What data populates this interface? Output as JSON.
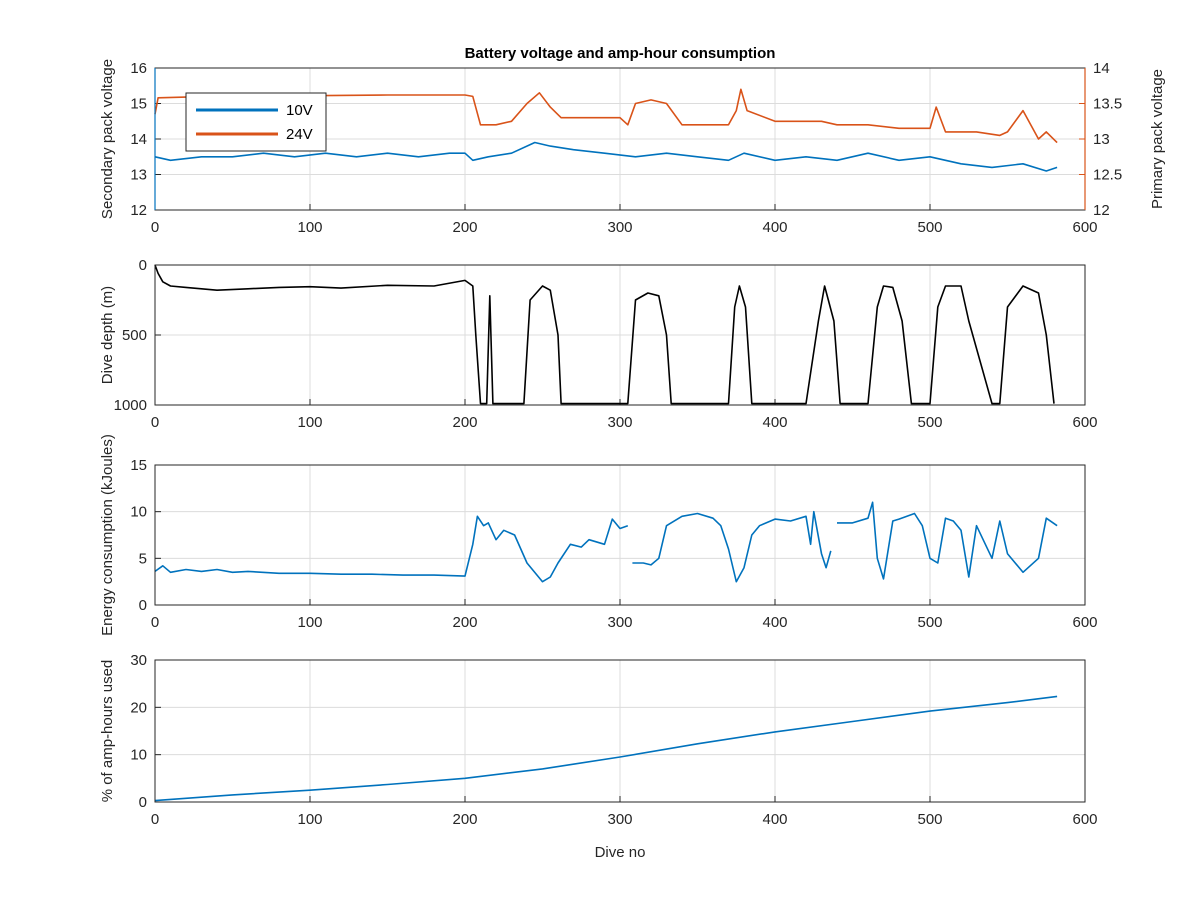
{
  "colors": {
    "blue": "#0072BD",
    "orange": "#D95319",
    "black": "#000000",
    "grid": "#dcdcdc",
    "axis": "#262626"
  },
  "figure_title": "Battery voltage and amp-hour consumption",
  "chart_data": [
    {
      "type": "line",
      "title": "Battery voltage and amp-hour consumption",
      "xlabel": "",
      "ylabel": "Secondary pack voltage",
      "ylabel_right": "Primary pack voltage",
      "xlim": [
        0,
        600
      ],
      "ylim": [
        12,
        16
      ],
      "ylim_right": [
        12,
        14
      ],
      "xticks": [
        "0",
        "100",
        "200",
        "300",
        "400",
        "500",
        "600"
      ],
      "yticks": [
        "12",
        "13",
        "14",
        "15",
        "16"
      ],
      "yticks_right": [
        "12",
        "12.5",
        "13",
        "13.5",
        "14"
      ],
      "grid": true,
      "legend": {
        "position": "top-left",
        "entries": [
          "10V",
          "24V"
        ]
      },
      "series": [
        {
          "name": "10V",
          "axis": "left",
          "color": "blue",
          "x": [
            0,
            10,
            30,
            50,
            70,
            90,
            110,
            130,
            150,
            170,
            190,
            200,
            205,
            215,
            230,
            245,
            255,
            270,
            290,
            310,
            330,
            350,
            370,
            380,
            400,
            420,
            440,
            460,
            480,
            500,
            520,
            540,
            560,
            575,
            582
          ],
          "y": [
            13.5,
            13.4,
            13.5,
            13.5,
            13.6,
            13.5,
            13.6,
            13.5,
            13.6,
            13.5,
            13.6,
            13.6,
            13.4,
            13.5,
            13.6,
            13.9,
            13.8,
            13.7,
            13.6,
            13.5,
            13.6,
            13.5,
            13.4,
            13.6,
            13.4,
            13.5,
            13.4,
            13.6,
            13.4,
            13.5,
            13.3,
            13.2,
            13.3,
            13.1,
            13.2
          ]
        },
        {
          "name": "24V",
          "axis": "right",
          "color": "orange",
          "x": [
            0,
            2,
            20,
            50,
            100,
            150,
            200,
            205,
            210,
            220,
            230,
            240,
            248,
            255,
            262,
            280,
            300,
            305,
            310,
            320,
            330,
            340,
            370,
            375,
            378,
            382,
            400,
            430,
            440,
            460,
            480,
            500,
            504,
            510,
            530,
            545,
            550,
            560,
            570,
            575,
            582
          ],
          "y": [
            13.35,
            13.58,
            13.59,
            13.6,
            13.61,
            13.62,
            13.62,
            13.6,
            13.2,
            13.2,
            13.25,
            13.5,
            13.65,
            13.45,
            13.3,
            13.3,
            13.3,
            13.2,
            13.5,
            13.55,
            13.5,
            13.2,
            13.2,
            13.4,
            13.7,
            13.4,
            13.25,
            13.25,
            13.2,
            13.2,
            13.15,
            13.15,
            13.45,
            13.1,
            13.1,
            13.05,
            13.1,
            13.4,
            13.0,
            13.1,
            12.95
          ]
        }
      ]
    },
    {
      "type": "line",
      "xlabel": "",
      "ylabel": "Dive depth (m)",
      "xlim": [
        0,
        600
      ],
      "ylim": [
        1000,
        0
      ],
      "reversed_y": true,
      "xticks": [
        "0",
        "100",
        "200",
        "300",
        "400",
        "500",
        "600"
      ],
      "yticks": [
        "0",
        "500",
        "1000"
      ],
      "grid": true,
      "series": [
        {
          "color": "black",
          "x": [
            0,
            2,
            5,
            10,
            20,
            40,
            60,
            80,
            100,
            120,
            150,
            180,
            200,
            205,
            207,
            210,
            212,
            214,
            216,
            218,
            220,
            230,
            238,
            242,
            250,
            255,
            260,
            262,
            300,
            305,
            310,
            318,
            325,
            330,
            333,
            360,
            370,
            374,
            377,
            381,
            385,
            390,
            420,
            428,
            432,
            438,
            442,
            450,
            460,
            466,
            470,
            476,
            482,
            488,
            490,
            500,
            505,
            510,
            520,
            525,
            540,
            545,
            550,
            560,
            570,
            575,
            580
          ],
          "y": [
            0,
            60,
            120,
            150,
            160,
            180,
            170,
            160,
            155,
            165,
            145,
            150,
            110,
            150,
            500,
            990,
            990,
            990,
            220,
            990,
            990,
            990,
            990,
            250,
            150,
            180,
            500,
            990,
            990,
            990,
            250,
            200,
            220,
            500,
            990,
            990,
            990,
            300,
            150,
            300,
            990,
            990,
            990,
            400,
            150,
            400,
            990,
            990,
            990,
            300,
            150,
            160,
            400,
            990,
            990,
            990,
            300,
            150,
            150,
            400,
            990,
            990,
            300,
            150,
            200,
            500,
            990
          ]
        }
      ]
    },
    {
      "type": "line",
      "xlabel": "",
      "ylabel": "Energy consumption (kJoules)",
      "xlim": [
        0,
        600
      ],
      "ylim": [
        0,
        15
      ],
      "xticks": [
        "0",
        "100",
        "200",
        "300",
        "400",
        "500",
        "600"
      ],
      "yticks": [
        "0",
        "5",
        "10",
        "15"
      ],
      "grid": true,
      "series": [
        {
          "color": "blue",
          "segments": [
            {
              "x": [
                0,
                5,
                10,
                20,
                30,
                40,
                50,
                60,
                80,
                100,
                120,
                140,
                160,
                180,
                200,
                205,
                208,
                212,
                215,
                220,
                225,
                232,
                240,
                250,
                255,
                260,
                268,
                275,
                280,
                290,
                295,
                300,
                305
              ],
              "y": [
                3.6,
                4.2,
                3.5,
                3.8,
                3.6,
                3.8,
                3.5,
                3.6,
                3.4,
                3.4,
                3.3,
                3.3,
                3.2,
                3.2,
                3.1,
                6.5,
                9.5,
                8.5,
                8.8,
                7.0,
                8.0,
                7.5,
                4.5,
                2.5,
                3.0,
                4.5,
                6.5,
                6.2,
                7.0,
                6.5,
                9.2,
                8.2,
                8.5
              ]
            },
            {
              "x": [
                308,
                315,
                320,
                325,
                330,
                340,
                350,
                360,
                365,
                370,
                375,
                380,
                385,
                390,
                400,
                410,
                420,
                423,
                425,
                430,
                433,
                436
              ],
              "y": [
                4.5,
                4.5,
                4.3,
                5.0,
                8.5,
                9.5,
                9.8,
                9.3,
                8.5,
                6.0,
                2.5,
                4.0,
                7.5,
                8.5,
                9.2,
                9.0,
                9.5,
                6.5,
                10.0,
                5.5,
                4.0,
                5.8
              ]
            },
            {
              "x": [
                440,
                450,
                460,
                463,
                466,
                470,
                476,
                480,
                490,
                495,
                500,
                505,
                510,
                515,
                520,
                525,
                530,
                540,
                545,
                550,
                560,
                570,
                575,
                582
              ],
              "y": [
                8.8,
                8.8,
                9.3,
                11.0,
                5.0,
                2.8,
                9.0,
                9.2,
                9.8,
                8.5,
                5.0,
                4.5,
                9.3,
                9.0,
                8.0,
                3.0,
                8.5,
                5.0,
                9.0,
                5.5,
                3.5,
                5.0,
                9.3,
                8.5
              ]
            }
          ]
        }
      ]
    },
    {
      "type": "line",
      "xlabel": "Dive no",
      "ylabel": "% of amp-hours used",
      "xlim": [
        0,
        600
      ],
      "ylim": [
        0,
        30
      ],
      "xticks": [
        "0",
        "100",
        "200",
        "300",
        "400",
        "500",
        "600"
      ],
      "yticks": [
        "0",
        "10",
        "20",
        "30"
      ],
      "grid": true,
      "series": [
        {
          "color": "blue",
          "x": [
            0,
            50,
            100,
            150,
            200,
            250,
            300,
            350,
            400,
            450,
            500,
            550,
            582
          ],
          "y": [
            0.3,
            1.5,
            2.5,
            3.7,
            5.0,
            7.0,
            9.5,
            12.3,
            14.8,
            17.0,
            19.2,
            21.0,
            22.3
          ]
        }
      ]
    }
  ]
}
